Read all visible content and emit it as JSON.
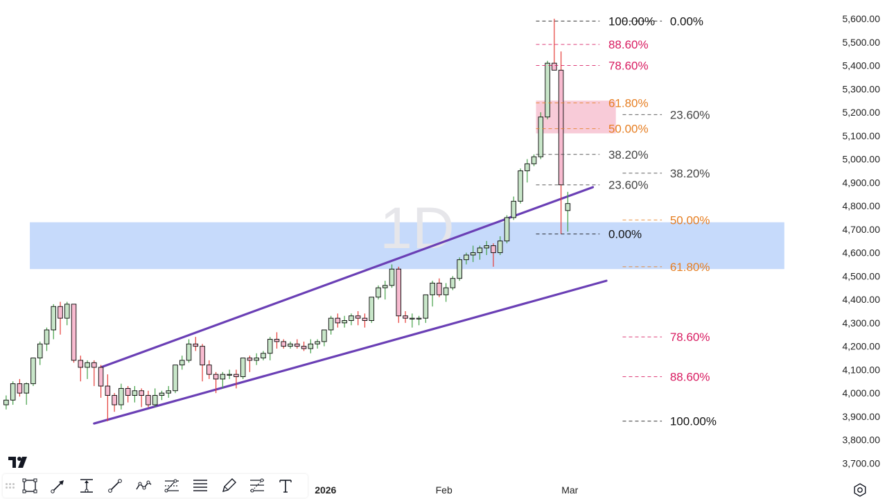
{
  "chart_data": {
    "type": "candlestick",
    "interval_watermark": "1D",
    "ylim": [
      3640,
      5640
    ],
    "y_axis_side": "right",
    "y_ticks": [
      "5,600.00",
      "5,500.00",
      "5,400.00",
      "5,300.00",
      "5,200.00",
      "5,100.00",
      "5,000.00",
      "4,900.00",
      "4,800.00",
      "4,700.00",
      "4,600.00",
      "4,500.00",
      "4,400.00",
      "4,300.00",
      "4,200.00",
      "4,100.00",
      "4,000.00",
      "3,900.00",
      "3,800.00",
      "3,700.00"
    ],
    "y_tick_values": [
      5600,
      5500,
      5400,
      5300,
      5200,
      5100,
      5000,
      4900,
      4800,
      4700,
      4600,
      4500,
      4400,
      4300,
      4200,
      4100,
      4000,
      3900,
      3800,
      3700
    ],
    "x_labels": [
      {
        "text": "2026",
        "bar": 47.7
      },
      {
        "text": "Feb",
        "bar": 65.2
      },
      {
        "text": "Mar",
        "bar": 83.8
      }
    ],
    "colors": {
      "up": "#c8e6c9",
      "down": "#f8bbd0",
      "border": "#000000",
      "wick_up": "#43a047",
      "wick_down": "#e53935"
    },
    "candles": [
      [
        3950,
        3990,
        3930,
        3970
      ],
      [
        3970,
        4050,
        3950,
        4040
      ],
      [
        4040,
        4060,
        3985,
        4000
      ],
      [
        4000,
        4045,
        3950,
        4040
      ],
      [
        4040,
        4150,
        4030,
        4150
      ],
      [
        4150,
        4220,
        4120,
        4210
      ],
      [
        4210,
        4280,
        4180,
        4270
      ],
      [
        4270,
        4380,
        4230,
        4370
      ],
      [
        4370,
        4390,
        4250,
        4320
      ],
      [
        4320,
        4390,
        4290,
        4380
      ],
      [
        4380,
        4380,
        4130,
        4140
      ],
      [
        4140,
        4160,
        4050,
        4110
      ],
      [
        4110,
        4140,
        4060,
        4130
      ],
      [
        4130,
        4140,
        4030,
        4110
      ],
      [
        4110,
        4120,
        3980,
        4030
      ],
      [
        4030,
        4080,
        3880,
        3990
      ],
      [
        3990,
        4000,
        3920,
        3950
      ],
      [
        3950,
        4040,
        3930,
        4020
      ],
      [
        4020,
        4030,
        3960,
        3990
      ],
      [
        3990,
        4030,
        3960,
        4010
      ],
      [
        4010,
        4020,
        3940,
        3990
      ],
      [
        3990,
        4010,
        3940,
        3950
      ],
      [
        3950,
        4020,
        3940,
        3990
      ],
      [
        3990,
        4010,
        3970,
        4000
      ],
      [
        4000,
        4030,
        3980,
        4010
      ],
      [
        4010,
        4120,
        4000,
        4120
      ],
      [
        4120,
        4160,
        4100,
        4140
      ],
      [
        4140,
        4230,
        4130,
        4210
      ],
      [
        4210,
        4240,
        4180,
        4200
      ],
      [
        4200,
        4210,
        4050,
        4120
      ],
      [
        4120,
        4140,
        4060,
        4080
      ],
      [
        4080,
        4090,
        4000,
        4060
      ],
      [
        4060,
        4090,
        4020,
        4080
      ],
      [
        4080,
        4100,
        4060,
        4080
      ],
      [
        4080,
        4100,
        4020,
        4070
      ],
      [
        4070,
        4150,
        4060,
        4150
      ],
      [
        4150,
        4160,
        4090,
        4140
      ],
      [
        4140,
        4170,
        4120,
        4150
      ],
      [
        4150,
        4180,
        4140,
        4170
      ],
      [
        4170,
        4240,
        4140,
        4230
      ],
      [
        4230,
        4260,
        4190,
        4220
      ],
      [
        4220,
        4230,
        4190,
        4200
      ],
      [
        4200,
        4220,
        4190,
        4210
      ],
      [
        4210,
        4230,
        4190,
        4200
      ],
      [
        4200,
        4220,
        4180,
        4190
      ],
      [
        4190,
        4230,
        4170,
        4210
      ],
      [
        4210,
        4230,
        4190,
        4220
      ],
      [
        4220,
        4270,
        4200,
        4270
      ],
      [
        4270,
        4330,
        4250,
        4320
      ],
      [
        4320,
        4340,
        4280,
        4300
      ],
      [
        4300,
        4330,
        4280,
        4310
      ],
      [
        4310,
        4340,
        4290,
        4330
      ],
      [
        4330,
        4350,
        4290,
        4320
      ],
      [
        4320,
        4340,
        4280,
        4310
      ],
      [
        4310,
        4410,
        4300,
        4410
      ],
      [
        4410,
        4460,
        4400,
        4450
      ],
      [
        4450,
        4480,
        4400,
        4460
      ],
      [
        4460,
        4550,
        4450,
        4530
      ],
      [
        4530,
        4540,
        4300,
        4330
      ],
      [
        4330,
        4350,
        4300,
        4320
      ],
      [
        4320,
        4340,
        4280,
        4320
      ],
      [
        4320,
        4330,
        4290,
        4320
      ],
      [
        4320,
        4420,
        4300,
        4420
      ],
      [
        4420,
        4480,
        4370,
        4470
      ],
      [
        4470,
        4490,
        4410,
        4420
      ],
      [
        4420,
        4470,
        4390,
        4450
      ],
      [
        4450,
        4500,
        4440,
        4490
      ],
      [
        4490,
        4580,
        4480,
        4570
      ],
      [
        4570,
        4600,
        4550,
        4590
      ],
      [
        4590,
        4630,
        4560,
        4600
      ],
      [
        4600,
        4630,
        4570,
        4620
      ],
      [
        4620,
        4650,
        4590,
        4630
      ],
      [
        4630,
        4640,
        4540,
        4600
      ],
      [
        4600,
        4670,
        4590,
        4650
      ],
      [
        4650,
        4760,
        4640,
        4750
      ],
      [
        4750,
        4840,
        4740,
        4820
      ],
      [
        4820,
        4960,
        4810,
        4950
      ],
      [
        4950,
        5000,
        4900,
        4980
      ],
      [
        4980,
        5020,
        4970,
        5010
      ],
      [
        5010,
        5200,
        5000,
        5180
      ],
      [
        5180,
        5420,
        5170,
        5410
      ],
      [
        5410,
        5600,
        5390,
        5380
      ],
      [
        5380,
        5460,
        4680,
        4890
      ],
      [
        4780,
        4860,
        4690,
        4810
      ]
    ],
    "channel_lines": [
      {
        "from": [
          14.5,
          4110
        ],
        "to": [
          87.2,
          4880
        ]
      },
      {
        "from": [
          13.5,
          3870
        ],
        "to": [
          89.2,
          4480
        ]
      }
    ],
    "zones": [
      {
        "name": "blue-zone",
        "y1": 4530,
        "y2": 4730,
        "color": "#c3d8fb",
        "x_from": 4,
        "x_to": 115.5
      },
      {
        "name": "pink-zone",
        "y1": 5110,
        "y2": 5250,
        "color": "#f8c8d6",
        "x_from": 78.8,
        "x_to": 90.6
      }
    ],
    "fib_retracement_short": {
      "x_from": 78.8,
      "x_to": 88.2,
      "label_x": 89.5,
      "levels": [
        {
          "label": "100.00%",
          "price": 5590,
          "color": "#111111"
        },
        {
          "label": "88.60%",
          "price": 5490,
          "color": "#d81b60"
        },
        {
          "label": "78.60%",
          "price": 5400,
          "color": "#d81b60"
        },
        {
          "label": "61.80%",
          "price": 5240,
          "color": "#e67e22"
        },
        {
          "label": "50.00%",
          "price": 5130,
          "color": "#e67e22"
        },
        {
          "label": "38.20%",
          "price": 5020,
          "color": "#444444"
        },
        {
          "label": "23.60%",
          "price": 4890,
          "color": "#444444"
        },
        {
          "label": "0.00%",
          "price": 4680,
          "color": "#111111"
        }
      ]
    },
    "fib_retracement_long": {
      "x_from": 91.6,
      "x_to": 97.4,
      "label_x": 98.6,
      "levels": [
        {
          "label": "0.00%",
          "price": 5590,
          "color": "#111111"
        },
        {
          "label": "23.60%",
          "price": 5190,
          "color": "#444444"
        },
        {
          "label": "38.20%",
          "price": 4940,
          "color": "#444444"
        },
        {
          "label": "50.00%",
          "price": 4740,
          "color": "#e67e22"
        },
        {
          "label": "61.80%",
          "price": 4540,
          "color": "#e67e22"
        },
        {
          "label": "78.60%",
          "price": 4240,
          "color": "#d81b60"
        },
        {
          "label": "88.60%",
          "price": 4070,
          "color": "#d81b60"
        },
        {
          "label": "100.00%",
          "price": 3880,
          "color": "#111111"
        }
      ]
    }
  },
  "toolbar": {
    "tools": [
      "rectangle-icon",
      "arrow-line-icon",
      "price-range-icon",
      "trend-line-icon",
      "path-icon",
      "fib-channel-icon",
      "horizontal-lines-icon",
      "arrow-marker-icon",
      "fib-retracement-icon",
      "text-icon"
    ]
  }
}
